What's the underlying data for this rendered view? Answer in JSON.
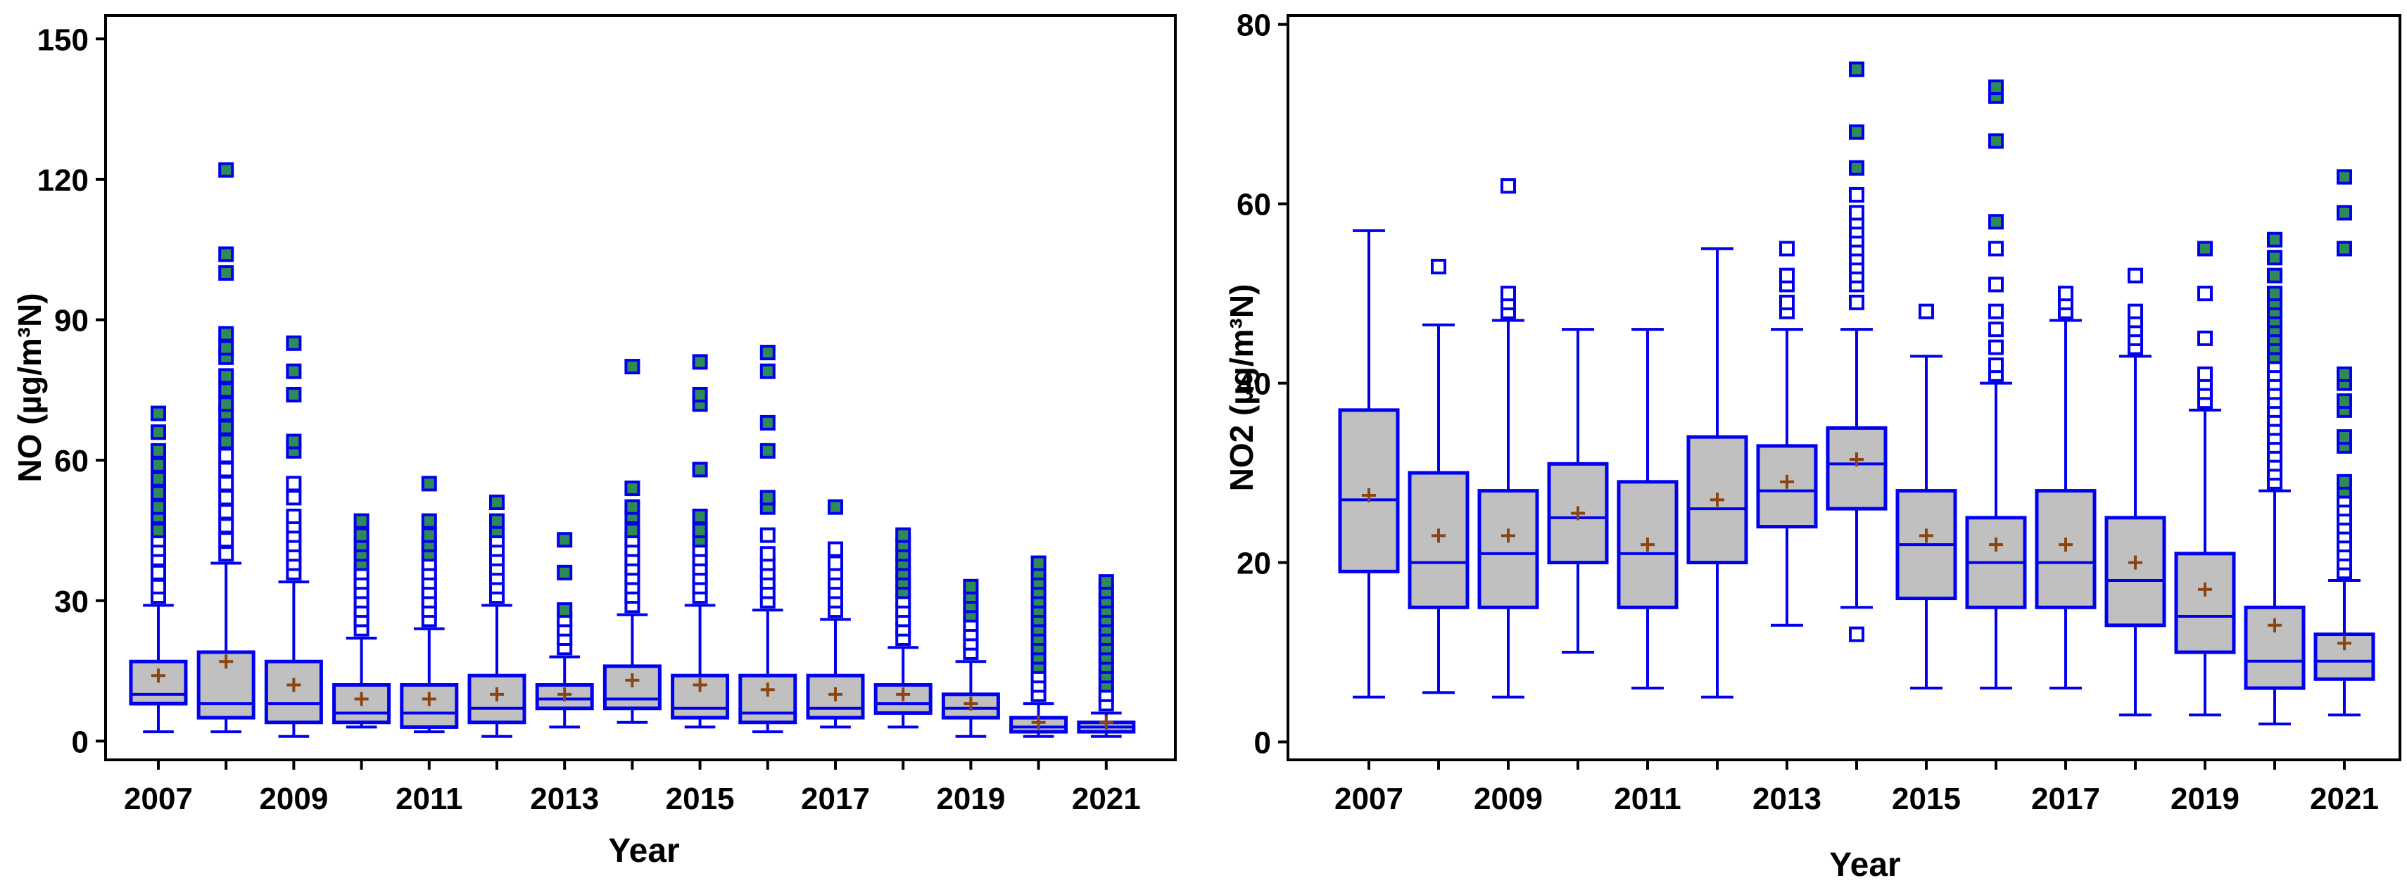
{
  "colors": {
    "box_fill": "#c0c0c0",
    "box_stroke": "#0000ee",
    "whisker": "#0000ee",
    "median": "#0000ee",
    "mean_marker": "#8b4513",
    "outlier_stroke": "#0000ee",
    "outlier_fill_extreme": "#2e8b57",
    "axis": "#000000"
  },
  "chart_data": [
    {
      "type": "box",
      "title": "",
      "xlabel": "Year",
      "ylabel": "NO (µg/m³N)",
      "ylim": [
        -4,
        155
      ],
      "yticks": [
        0,
        30,
        60,
        90,
        120,
        150
      ],
      "categories": [
        "2007",
        "2008",
        "2009",
        "2010",
        "2011",
        "2012",
        "2013",
        "2014",
        "2015",
        "2016",
        "2017",
        "2018",
        "2019",
        "2020",
        "2021"
      ],
      "xtick_labels": [
        "2007",
        "2009",
        "2011",
        "2013",
        "2015",
        "2017",
        "2019",
        "2021"
      ],
      "series": [
        {
          "category": "2007",
          "min": 2,
          "q1": 8,
          "median": 10,
          "q3": 17,
          "max": 29,
          "mean": 14,
          "outliers": [
            31,
            33,
            36,
            39,
            41,
            43,
            45,
            48,
            50,
            53,
            56,
            59,
            62,
            66,
            70
          ]
        },
        {
          "category": "2008",
          "min": 2,
          "q1": 5,
          "median": 8,
          "q3": 19,
          "max": 38,
          "mean": 17,
          "outliers": [
            40,
            43,
            46,
            49,
            52,
            55,
            58,
            61,
            64,
            67,
            70,
            72,
            75,
            78,
            82,
            84,
            87,
            100,
            104,
            122
          ]
        },
        {
          "category": "2009",
          "min": 1,
          "q1": 4,
          "median": 8,
          "q3": 17,
          "max": 34,
          "mean": 12,
          "outliers": [
            36,
            38,
            40,
            42,
            44,
            46,
            48,
            52,
            55,
            62,
            64,
            74,
            79,
            85
          ]
        },
        {
          "category": "2010",
          "min": 3,
          "q1": 4,
          "median": 6,
          "q3": 12,
          "max": 22,
          "mean": 9,
          "outliers": [
            24,
            26,
            28,
            30,
            32,
            34,
            36,
            38,
            40,
            42,
            44,
            47
          ]
        },
        {
          "category": "2011",
          "min": 2,
          "q1": 3,
          "median": 6,
          "q3": 12,
          "max": 24,
          "mean": 9,
          "outliers": [
            26,
            28,
            30,
            32,
            34,
            36,
            38,
            40,
            42,
            44,
            47,
            55
          ]
        },
        {
          "category": "2012",
          "min": 1,
          "q1": 4,
          "median": 7,
          "q3": 14,
          "max": 29,
          "mean": 10,
          "outliers": [
            31,
            33,
            35,
            37,
            39,
            41,
            43,
            45,
            47,
            51
          ]
        },
        {
          "category": "2013",
          "min": 3,
          "q1": 7,
          "median": 9,
          "q3": 12,
          "max": 18,
          "mean": 10,
          "outliers": [
            20,
            22,
            24,
            26,
            28,
            36,
            43
          ]
        },
        {
          "category": "2014",
          "min": 4,
          "q1": 7,
          "median": 9,
          "q3": 16,
          "max": 27,
          "mean": 13,
          "outliers": [
            29,
            31,
            33,
            35,
            37,
            39,
            41,
            43,
            45,
            48,
            50,
            54,
            80
          ]
        },
        {
          "category": "2015",
          "min": 3,
          "q1": 5,
          "median": 7,
          "q3": 14,
          "max": 29,
          "mean": 12,
          "outliers": [
            31,
            33,
            35,
            37,
            39,
            41,
            43,
            45,
            48,
            58,
            72,
            74,
            81
          ]
        },
        {
          "category": "2016",
          "min": 2,
          "q1": 4,
          "median": 6,
          "q3": 14,
          "max": 28,
          "mean": 11,
          "outliers": [
            30,
            32,
            34,
            36,
            38,
            40,
            44,
            50,
            52,
            62,
            68,
            79,
            83
          ]
        },
        {
          "category": "2017",
          "min": 3,
          "q1": 5,
          "median": 7,
          "q3": 14,
          "max": 26,
          "mean": 10,
          "outliers": [
            28,
            30,
            32,
            34,
            36,
            38,
            41,
            50
          ]
        },
        {
          "category": "2018",
          "min": 3,
          "q1": 6,
          "median": 8,
          "q3": 12,
          "max": 20,
          "mean": 10,
          "outliers": [
            22,
            24,
            26,
            28,
            30,
            32,
            34,
            36,
            38,
            40,
            42,
            44
          ]
        },
        {
          "category": "2019",
          "min": 1,
          "q1": 5,
          "median": 7,
          "q3": 10,
          "max": 17,
          "mean": 8,
          "outliers": [
            19,
            21,
            23,
            25,
            27,
            29,
            31,
            33
          ]
        },
        {
          "category": "2020",
          "min": 1,
          "q1": 2,
          "median": 3,
          "q3": 5,
          "max": 8,
          "mean": 4,
          "outliers": [
            10,
            12,
            14,
            16,
            18,
            20,
            22,
            24,
            26,
            28,
            30,
            32,
            34,
            36,
            38
          ]
        },
        {
          "category": "2021",
          "min": 1,
          "q1": 2,
          "median": 3,
          "q3": 4,
          "max": 6,
          "mean": 4,
          "outliers": [
            8,
            10,
            12,
            14,
            16,
            18,
            20,
            22,
            24,
            26,
            28,
            30,
            32,
            34
          ]
        }
      ]
    },
    {
      "type": "box",
      "title": "",
      "xlabel": "Year",
      "ylabel": "NO2 (µg/m³N)",
      "ylim": [
        -2,
        81
      ],
      "yticks": [
        0,
        20,
        40,
        60,
        80
      ],
      "categories": [
        "2007",
        "2008",
        "2009",
        "2010",
        "2011",
        "2012",
        "2013",
        "2014",
        "2015",
        "2016",
        "2017",
        "2018",
        "2019",
        "2020",
        "2021"
      ],
      "xtick_labels": [
        "2007",
        "2009",
        "2011",
        "2013",
        "2015",
        "2017",
        "2019",
        "2021"
      ],
      "series": [
        {
          "category": "2007",
          "min": 5,
          "q1": 19,
          "median": 27,
          "q3": 37,
          "max": 57,
          "mean": 27.5,
          "outliers": []
        },
        {
          "category": "2008",
          "min": 5.5,
          "q1": 15,
          "median": 20,
          "q3": 30,
          "max": 46.5,
          "mean": 23,
          "outliers": [
            53
          ]
        },
        {
          "category": "2009",
          "min": 5,
          "q1": 15,
          "median": 21,
          "q3": 28,
          "max": 47,
          "mean": 23,
          "outliers": [
            48,
            49,
            50,
            62
          ]
        },
        {
          "category": "2010",
          "min": 10,
          "q1": 20,
          "median": 25,
          "q3": 31,
          "max": 46,
          "mean": 25.5,
          "outliers": []
        },
        {
          "category": "2011",
          "min": 6,
          "q1": 15,
          "median": 21,
          "q3": 29,
          "max": 46,
          "mean": 22,
          "outliers": []
        },
        {
          "category": "2012",
          "min": 5,
          "q1": 20,
          "median": 26,
          "q3": 34,
          "max": 55,
          "mean": 27,
          "outliers": []
        },
        {
          "category": "2013",
          "min": 13,
          "q1": 24,
          "median": 28,
          "q3": 33,
          "max": 46,
          "mean": 29,
          "outliers": [
            48,
            49,
            51,
            52,
            55
          ]
        },
        {
          "category": "2014",
          "min": 15,
          "q1": 26,
          "median": 31,
          "q3": 35,
          "max": 46,
          "mean": 31.5,
          "outliers": [
            12,
            49,
            51,
            52,
            53,
            54,
            55,
            56,
            57,
            58,
            59,
            61,
            64,
            68,
            75
          ]
        },
        {
          "category": "2015",
          "min": 6,
          "q1": 16,
          "median": 22,
          "q3": 28,
          "max": 43,
          "mean": 23,
          "outliers": [
            48
          ]
        },
        {
          "category": "2016",
          "min": 6,
          "q1": 15,
          "median": 20,
          "q3": 25,
          "max": 40,
          "mean": 22,
          "outliers": [
            41,
            42,
            44,
            46,
            48,
            51,
            55,
            58,
            67,
            72,
            73
          ]
        },
        {
          "category": "2017",
          "min": 6,
          "q1": 15,
          "median": 20,
          "q3": 28,
          "max": 47,
          "mean": 22,
          "outliers": [
            48,
            49,
            50
          ]
        },
        {
          "category": "2018",
          "min": 3,
          "q1": 13,
          "median": 18,
          "q3": 25,
          "max": 43,
          "mean": 20,
          "outliers": [
            44,
            45,
            46,
            47,
            48,
            52
          ]
        },
        {
          "category": "2019",
          "min": 3,
          "q1": 10,
          "median": 14,
          "q3": 21,
          "max": 37,
          "mean": 17,
          "outliers": [
            38,
            39,
            40,
            41,
            45,
            50,
            55
          ]
        },
        {
          "category": "2020",
          "min": 2,
          "q1": 6,
          "median": 9,
          "q3": 15,
          "max": 28,
          "mean": 13,
          "outliers": [
            29,
            30,
            31,
            32,
            33,
            34,
            35,
            36,
            37,
            38,
            39,
            40,
            41,
            42,
            43,
            44,
            45,
            46,
            47,
            48,
            49,
            50,
            52,
            54,
            56
          ]
        },
        {
          "category": "2021",
          "min": 3,
          "q1": 7,
          "median": 9,
          "q3": 12,
          "max": 18,
          "mean": 11,
          "outliers": [
            19,
            20,
            21,
            22,
            23,
            24,
            25,
            26,
            27,
            28,
            29,
            33,
            34,
            37,
            38,
            40,
            41,
            55,
            59,
            63
          ]
        }
      ]
    }
  ]
}
